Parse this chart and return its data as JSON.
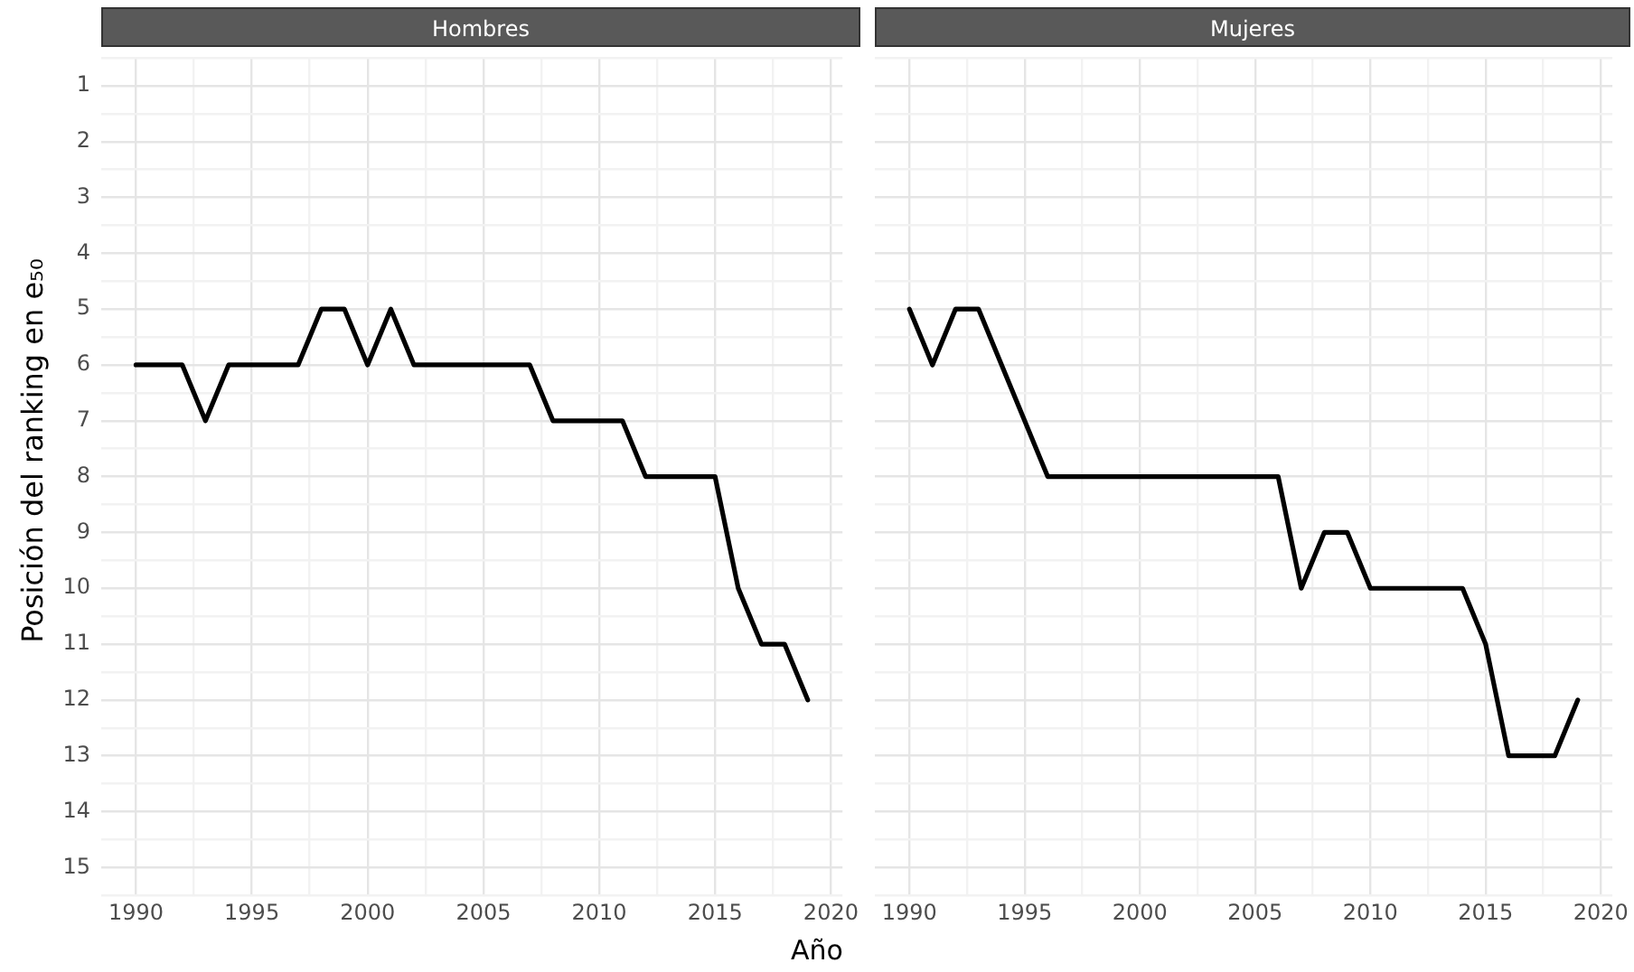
{
  "chart_data": [
    {
      "type": "line",
      "title": "Hombres",
      "xlabel": "Año",
      "ylabel": "Posición del ranking en e₅₀",
      "x": [
        1990,
        1991,
        1992,
        1993,
        1994,
        1995,
        1996,
        1997,
        1998,
        1999,
        2000,
        2001,
        2002,
        2003,
        2004,
        2005,
        2006,
        2007,
        2008,
        2009,
        2010,
        2011,
        2012,
        2013,
        2014,
        2015,
        2016,
        2017,
        2018,
        2019
      ],
      "series": [
        {
          "color": "#000000",
          "values": [
            6,
            6,
            6,
            7,
            6,
            6,
            6,
            6,
            5,
            5,
            6,
            5,
            6,
            6,
            6,
            6,
            6,
            6,
            7,
            7,
            7,
            7,
            8,
            8,
            8,
            8,
            10,
            11,
            11,
            12
          ]
        }
      ],
      "xlim": [
        1988.5,
        2020.5
      ],
      "xticks": [
        1990,
        {
          "value": 1992.5,
          "label": null
        },
        1995,
        {
          "value": 1997.5,
          "label": null
        },
        2000,
        {
          "value": 2002.5,
          "label": null
        },
        2005,
        {
          "value": 2007.5,
          "label": null
        },
        2010,
        {
          "value": 2012.5,
          "label": null
        },
        2015,
        {
          "value": 2017.5,
          "label": null
        },
        2020
      ],
      "ylim": [
        15.5,
        0.5
      ],
      "yticks": [
        {
          "value": 0.5,
          "label": null
        },
        1,
        {
          "value": 1.5,
          "label": null
        },
        2,
        {
          "value": 2.5,
          "label": null
        },
        3,
        {
          "value": 3.5,
          "label": null
        },
        4,
        {
          "value": 4.5,
          "label": null
        },
        5,
        {
          "value": 5.5,
          "label": null
        },
        6,
        {
          "value": 6.5,
          "label": null
        },
        7,
        {
          "value": 7.5,
          "label": null
        },
        8,
        {
          "value": 8.5,
          "label": null
        },
        9,
        {
          "value": 9.5,
          "label": null
        },
        10,
        {
          "value": 10.5,
          "label": null
        },
        11,
        {
          "value": 11.5,
          "label": null
        },
        12,
        {
          "value": 12.5,
          "label": null
        },
        13,
        {
          "value": 13.5,
          "label": null
        },
        14,
        {
          "value": 14.5,
          "label": null
        },
        15,
        {
          "value": 15.5,
          "label": null
        }
      ],
      "grid": true,
      "marker": "none",
      "line_style": "solid"
    },
    {
      "type": "line",
      "title": "Mujeres",
      "x": [
        1990,
        1991,
        1992,
        1993,
        1994,
        1995,
        1996,
        1997,
        1998,
        1999,
        2000,
        2001,
        2002,
        2003,
        2004,
        2005,
        2006,
        2007,
        2008,
        2009,
        2010,
        2011,
        2012,
        2013,
        2014,
        2015,
        2016,
        2017,
        2018,
        2019
      ],
      "series": [
        {
          "color": "#000000",
          "values": [
            5,
            6,
            5,
            5,
            6,
            7,
            8,
            8,
            8,
            8,
            8,
            8,
            8,
            8,
            8,
            8,
            8,
            10,
            9,
            9,
            10,
            10,
            10,
            10,
            10,
            11,
            13,
            13,
            13,
            12
          ]
        }
      ],
      "xlim": [
        1988.5,
        2020.5
      ],
      "xticks": [
        1990,
        {
          "value": 1992.5,
          "label": null
        },
        1995,
        {
          "value": 1997.5,
          "label": null
        },
        2000,
        {
          "value": 2002.5,
          "label": null
        },
        2005,
        {
          "value": 2007.5,
          "label": null
        },
        2010,
        {
          "value": 2012.5,
          "label": null
        },
        2015,
        {
          "value": 2017.5,
          "label": null
        },
        2020
      ],
      "ylim": [
        15.5,
        0.5
      ],
      "yticks": [
        {
          "value": 0.5,
          "label": null
        },
        1,
        {
          "value": 1.5,
          "label": null
        },
        2,
        {
          "value": 2.5,
          "label": null
        },
        3,
        {
          "value": 3.5,
          "label": null
        },
        4,
        {
          "value": 4.5,
          "label": null
        },
        5,
        {
          "value": 5.5,
          "label": null
        },
        6,
        {
          "value": 6.5,
          "label": null
        },
        7,
        {
          "value": 7.5,
          "label": null
        },
        8,
        {
          "value": 8.5,
          "label": null
        },
        9,
        {
          "value": 9.5,
          "label": null
        },
        10,
        {
          "value": 10.5,
          "label": null
        },
        11,
        {
          "value": 11.5,
          "label": null
        },
        12,
        {
          "value": 12.5,
          "label": null
        },
        13,
        {
          "value": 13.5,
          "label": null
        },
        14,
        {
          "value": 14.5,
          "label": null
        },
        15,
        {
          "value": 15.5,
          "label": null
        }
      ],
      "tick_labels": "x",
      "grid": true,
      "marker": "none",
      "line_style": "solid"
    }
  ]
}
